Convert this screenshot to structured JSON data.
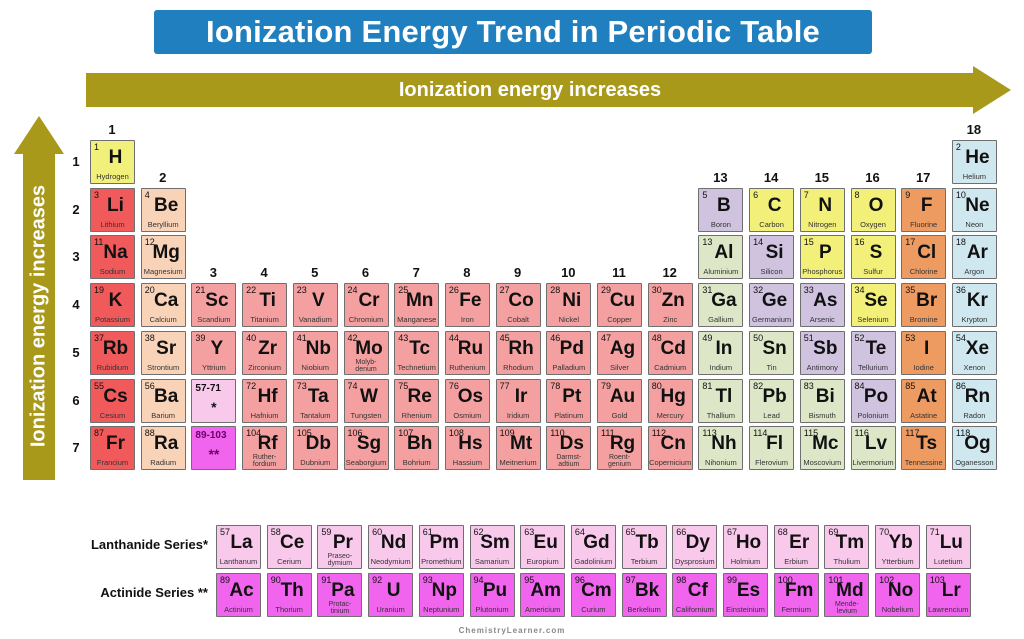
{
  "title": "Ionization Energy Trend in Periodic Table",
  "horizontal_arrow": {
    "label": "Ionization energy increases",
    "color": "#a9991a"
  },
  "vertical_arrow": {
    "label": "Ionization energy increases",
    "color": "#a9991a"
  },
  "colors": {
    "alkali": "#f05a5a",
    "alkaline": "#f9d3b8",
    "transition": "#f4a0a0",
    "hydrogen": "#f1f07a",
    "nonmetal": "#f3f07a",
    "metalloid": "#cfc3e0",
    "post_transition": "#dde7c8",
    "halogen": "#ee9b62",
    "noble": "#cfe7ee",
    "lanthanide": "#f9c9ec",
    "actinide": "#f064ee"
  },
  "periods": [
    "1",
    "2",
    "3",
    "4",
    "5",
    "6",
    "7"
  ],
  "groups": [
    "1",
    "2",
    "3",
    "4",
    "5",
    "6",
    "7",
    "8",
    "9",
    "10",
    "11",
    "12",
    "13",
    "14",
    "15",
    "16",
    "17",
    "18"
  ],
  "elements": [
    {
      "n": "1",
      "s": "H",
      "name": "Hydrogen",
      "p": 1,
      "g": 1,
      "c": "hydrogen"
    },
    {
      "n": "2",
      "s": "He",
      "name": "Helium",
      "p": 1,
      "g": 18,
      "c": "noble"
    },
    {
      "n": "3",
      "s": "Li",
      "name": "Lithium",
      "p": 2,
      "g": 1,
      "c": "alkali"
    },
    {
      "n": "4",
      "s": "Be",
      "name": "Beryllium",
      "p": 2,
      "g": 2,
      "c": "alkaline"
    },
    {
      "n": "5",
      "s": "B",
      "name": "Boron",
      "p": 2,
      "g": 13,
      "c": "metalloid"
    },
    {
      "n": "6",
      "s": "C",
      "name": "Carbon",
      "p": 2,
      "g": 14,
      "c": "nonmetal"
    },
    {
      "n": "7",
      "s": "N",
      "name": "Nitrogen",
      "p": 2,
      "g": 15,
      "c": "nonmetal"
    },
    {
      "n": "8",
      "s": "O",
      "name": "Oxygen",
      "p": 2,
      "g": 16,
      "c": "nonmetal"
    },
    {
      "n": "9",
      "s": "F",
      "name": "Fluorine",
      "p": 2,
      "g": 17,
      "c": "halogen"
    },
    {
      "n": "10",
      "s": "Ne",
      "name": "Neon",
      "p": 2,
      "g": 18,
      "c": "noble"
    },
    {
      "n": "11",
      "s": "Na",
      "name": "Sodium",
      "p": 3,
      "g": 1,
      "c": "alkali"
    },
    {
      "n": "12",
      "s": "Mg",
      "name": "Magnesium",
      "p": 3,
      "g": 2,
      "c": "alkaline"
    },
    {
      "n": "13",
      "s": "Al",
      "name": "Aluminium",
      "p": 3,
      "g": 13,
      "c": "post_transition"
    },
    {
      "n": "14",
      "s": "Si",
      "name": "Silicon",
      "p": 3,
      "g": 14,
      "c": "metalloid"
    },
    {
      "n": "15",
      "s": "P",
      "name": "Phosphorus",
      "p": 3,
      "g": 15,
      "c": "nonmetal"
    },
    {
      "n": "16",
      "s": "S",
      "name": "Sulfur",
      "p": 3,
      "g": 16,
      "c": "nonmetal"
    },
    {
      "n": "17",
      "s": "Cl",
      "name": "Chlorine",
      "p": 3,
      "g": 17,
      "c": "halogen"
    },
    {
      "n": "18",
      "s": "Ar",
      "name": "Argon",
      "p": 3,
      "g": 18,
      "c": "noble"
    },
    {
      "n": "19",
      "s": "K",
      "name": "Potassium",
      "p": 4,
      "g": 1,
      "c": "alkali"
    },
    {
      "n": "20",
      "s": "Ca",
      "name": "Calcium",
      "p": 4,
      "g": 2,
      "c": "alkaline"
    },
    {
      "n": "21",
      "s": "Sc",
      "name": "Scandium",
      "p": 4,
      "g": 3,
      "c": "transition"
    },
    {
      "n": "22",
      "s": "Ti",
      "name": "Titanium",
      "p": 4,
      "g": 4,
      "c": "transition"
    },
    {
      "n": "23",
      "s": "V",
      "name": "Vanadium",
      "p": 4,
      "g": 5,
      "c": "transition"
    },
    {
      "n": "24",
      "s": "Cr",
      "name": "Chromium",
      "p": 4,
      "g": 6,
      "c": "transition"
    },
    {
      "n": "25",
      "s": "Mn",
      "name": "Manganese",
      "p": 4,
      "g": 7,
      "c": "transition"
    },
    {
      "n": "26",
      "s": "Fe",
      "name": "Iron",
      "p": 4,
      "g": 8,
      "c": "transition"
    },
    {
      "n": "27",
      "s": "Co",
      "name": "Cobalt",
      "p": 4,
      "g": 9,
      "c": "transition"
    },
    {
      "n": "28",
      "s": "Ni",
      "name": "Nickel",
      "p": 4,
      "g": 10,
      "c": "transition"
    },
    {
      "n": "29",
      "s": "Cu",
      "name": "Copper",
      "p": 4,
      "g": 11,
      "c": "transition"
    },
    {
      "n": "30",
      "s": "Zn",
      "name": "Zinc",
      "p": 4,
      "g": 12,
      "c": "transition"
    },
    {
      "n": "31",
      "s": "Ga",
      "name": "Gallium",
      "p": 4,
      "g": 13,
      "c": "post_transition"
    },
    {
      "n": "32",
      "s": "Ge",
      "name": "Germanium",
      "p": 4,
      "g": 14,
      "c": "metalloid"
    },
    {
      "n": "33",
      "s": "As",
      "name": "Arsenic",
      "p": 4,
      "g": 15,
      "c": "metalloid"
    },
    {
      "n": "34",
      "s": "Se",
      "name": "Selenium",
      "p": 4,
      "g": 16,
      "c": "nonmetal"
    },
    {
      "n": "35",
      "s": "Br",
      "name": "Bromine",
      "p": 4,
      "g": 17,
      "c": "halogen"
    },
    {
      "n": "36",
      "s": "Kr",
      "name": "Krypton",
      "p": 4,
      "g": 18,
      "c": "noble"
    },
    {
      "n": "37",
      "s": "Rb",
      "name": "Rubidium",
      "p": 5,
      "g": 1,
      "c": "alkali"
    },
    {
      "n": "38",
      "s": "Sr",
      "name": "Strontium",
      "p": 5,
      "g": 2,
      "c": "alkaline"
    },
    {
      "n": "39",
      "s": "Y",
      "name": "Yttrium",
      "p": 5,
      "g": 3,
      "c": "transition"
    },
    {
      "n": "40",
      "s": "Zr",
      "name": "Zirconium",
      "p": 5,
      "g": 4,
      "c": "transition"
    },
    {
      "n": "41",
      "s": "Nb",
      "name": "Niobium",
      "p": 5,
      "g": 5,
      "c": "transition"
    },
    {
      "n": "42",
      "s": "Mo",
      "name": "Molyb-\ndenum",
      "p": 5,
      "g": 6,
      "c": "transition"
    },
    {
      "n": "43",
      "s": "Tc",
      "name": "Technetium",
      "p": 5,
      "g": 7,
      "c": "transition"
    },
    {
      "n": "44",
      "s": "Ru",
      "name": "Ruthenium",
      "p": 5,
      "g": 8,
      "c": "transition"
    },
    {
      "n": "45",
      "s": "Rh",
      "name": "Rhodium",
      "p": 5,
      "g": 9,
      "c": "transition"
    },
    {
      "n": "46",
      "s": "Pd",
      "name": "Palladium",
      "p": 5,
      "g": 10,
      "c": "transition"
    },
    {
      "n": "47",
      "s": "Ag",
      "name": "Silver",
      "p": 5,
      "g": 11,
      "c": "transition"
    },
    {
      "n": "48",
      "s": "Cd",
      "name": "Cadmium",
      "p": 5,
      "g": 12,
      "c": "transition"
    },
    {
      "n": "49",
      "s": "In",
      "name": "Indium",
      "p": 5,
      "g": 13,
      "c": "post_transition"
    },
    {
      "n": "50",
      "s": "Sn",
      "name": "Tin",
      "p": 5,
      "g": 14,
      "c": "post_transition"
    },
    {
      "n": "51",
      "s": "Sb",
      "name": "Antimony",
      "p": 5,
      "g": 15,
      "c": "metalloid"
    },
    {
      "n": "52",
      "s": "Te",
      "name": "Tellurium",
      "p": 5,
      "g": 16,
      "c": "metalloid"
    },
    {
      "n": "53",
      "s": "I",
      "name": "Iodine",
      "p": 5,
      "g": 17,
      "c": "halogen"
    },
    {
      "n": "54",
      "s": "Xe",
      "name": "Xenon",
      "p": 5,
      "g": 18,
      "c": "noble"
    },
    {
      "n": "55",
      "s": "Cs",
      "name": "Cesium",
      "p": 6,
      "g": 1,
      "c": "alkali"
    },
    {
      "n": "56",
      "s": "Ba",
      "name": "Barium",
      "p": 6,
      "g": 2,
      "c": "alkaline"
    },
    {
      "n": "72",
      "s": "Hf",
      "name": "Hafnium",
      "p": 6,
      "g": 4,
      "c": "transition"
    },
    {
      "n": "73",
      "s": "Ta",
      "name": "Tantalum",
      "p": 6,
      "g": 5,
      "c": "transition"
    },
    {
      "n": "74",
      "s": "W",
      "name": "Tungsten",
      "p": 6,
      "g": 6,
      "c": "transition"
    },
    {
      "n": "75",
      "s": "Re",
      "name": "Rhenium",
      "p": 6,
      "g": 7,
      "c": "transition"
    },
    {
      "n": "76",
      "s": "Os",
      "name": "Osmium",
      "p": 6,
      "g": 8,
      "c": "transition"
    },
    {
      "n": "77",
      "s": "Ir",
      "name": "Iridium",
      "p": 6,
      "g": 9,
      "c": "transition"
    },
    {
      "n": "78",
      "s": "Pt",
      "name": "Platinum",
      "p": 6,
      "g": 10,
      "c": "transition"
    },
    {
      "n": "79",
      "s": "Au",
      "name": "Gold",
      "p": 6,
      "g": 11,
      "c": "transition"
    },
    {
      "n": "80",
      "s": "Hg",
      "name": "Mercury",
      "p": 6,
      "g": 12,
      "c": "transition"
    },
    {
      "n": "81",
      "s": "Tl",
      "name": "Thallium",
      "p": 6,
      "g": 13,
      "c": "post_transition"
    },
    {
      "n": "82",
      "s": "Pb",
      "name": "Lead",
      "p": 6,
      "g": 14,
      "c": "post_transition"
    },
    {
      "n": "83",
      "s": "Bi",
      "name": "Bismuth",
      "p": 6,
      "g": 15,
      "c": "post_transition"
    },
    {
      "n": "84",
      "s": "Po",
      "name": "Polonium",
      "p": 6,
      "g": 16,
      "c": "metalloid"
    },
    {
      "n": "85",
      "s": "At",
      "name": "Astatine",
      "p": 6,
      "g": 17,
      "c": "halogen"
    },
    {
      "n": "86",
      "s": "Rn",
      "name": "Radon",
      "p": 6,
      "g": 18,
      "c": "noble"
    },
    {
      "n": "87",
      "s": "Fr",
      "name": "Francium",
      "p": 7,
      "g": 1,
      "c": "alkali"
    },
    {
      "n": "88",
      "s": "Ra",
      "name": "Radium",
      "p": 7,
      "g": 2,
      "c": "alkaline"
    },
    {
      "n": "104",
      "s": "Rf",
      "name": "Ruther-\nfordium",
      "p": 7,
      "g": 4,
      "c": "transition"
    },
    {
      "n": "105",
      "s": "Db",
      "name": "Dubnium",
      "p": 7,
      "g": 5,
      "c": "transition"
    },
    {
      "n": "106",
      "s": "Sg",
      "name": "Seaborgium",
      "p": 7,
      "g": 6,
      "c": "transition"
    },
    {
      "n": "107",
      "s": "Bh",
      "name": "Bohrium",
      "p": 7,
      "g": 7,
      "c": "transition"
    },
    {
      "n": "108",
      "s": "Hs",
      "name": "Hassium",
      "p": 7,
      "g": 8,
      "c": "transition"
    },
    {
      "n": "109",
      "s": "Mt",
      "name": "Meitnerium",
      "p": 7,
      "g": 9,
      "c": "transition"
    },
    {
      "n": "110",
      "s": "Ds",
      "name": "Darmst-\nadtium",
      "p": 7,
      "g": 10,
      "c": "transition"
    },
    {
      "n": "111",
      "s": "Rg",
      "name": "Roent-\ngenium",
      "p": 7,
      "g": 11,
      "c": "transition"
    },
    {
      "n": "112",
      "s": "Cn",
      "name": "Copernicium",
      "p": 7,
      "g": 12,
      "c": "transition"
    },
    {
      "n": "113",
      "s": "Nh",
      "name": "Nihonium",
      "p": 7,
      "g": 13,
      "c": "post_transition"
    },
    {
      "n": "114",
      "s": "Fl",
      "name": "Flerovium",
      "p": 7,
      "g": 14,
      "c": "post_transition"
    },
    {
      "n": "115",
      "s": "Mc",
      "name": "Moscovium",
      "p": 7,
      "g": 15,
      "c": "post_transition"
    },
    {
      "n": "116",
      "s": "Lv",
      "name": "Livermorium",
      "p": 7,
      "g": 16,
      "c": "post_transition"
    },
    {
      "n": "117",
      "s": "Ts",
      "name": "Tennessine",
      "p": 7,
      "g": 17,
      "c": "halogen"
    },
    {
      "n": "118",
      "s": "Og",
      "name": "Oganesson",
      "p": 7,
      "g": 18,
      "c": "noble"
    }
  ],
  "placeholders": [
    {
      "range": "57-71",
      "stars": "*",
      "p": 6,
      "g": 3,
      "c": "lanthanide"
    },
    {
      "range": "89-103",
      "stars": "**",
      "p": 7,
      "g": 3,
      "c": "actinide"
    }
  ],
  "lanthanide_series": {
    "label": "Lanthanide Series",
    "marker": "*",
    "elements": [
      {
        "n": "57",
        "s": "La",
        "name": "Lanthanum"
      },
      {
        "n": "58",
        "s": "Ce",
        "name": "Cerium"
      },
      {
        "n": "59",
        "s": "Pr",
        "name": "Praseo-\ndymium"
      },
      {
        "n": "60",
        "s": "Nd",
        "name": "Neodymium"
      },
      {
        "n": "61",
        "s": "Pm",
        "name": "Promethium"
      },
      {
        "n": "62",
        "s": "Sm",
        "name": "Samarium"
      },
      {
        "n": "63",
        "s": "Eu",
        "name": "Europium"
      },
      {
        "n": "64",
        "s": "Gd",
        "name": "Gadolinium"
      },
      {
        "n": "65",
        "s": "Tb",
        "name": "Terbium"
      },
      {
        "n": "66",
        "s": "Dy",
        "name": "Dysprosium"
      },
      {
        "n": "67",
        "s": "Ho",
        "name": "Holmium"
      },
      {
        "n": "68",
        "s": "Er",
        "name": "Erbium"
      },
      {
        "n": "69",
        "s": "Tm",
        "name": "Thulium"
      },
      {
        "n": "70",
        "s": "Yb",
        "name": "Ytterbium"
      },
      {
        "n": "71",
        "s": "Lu",
        "name": "Lutetium"
      }
    ]
  },
  "actinide_series": {
    "label": "Actinide Series",
    "marker": "**",
    "elements": [
      {
        "n": "89",
        "s": "Ac",
        "name": "Actinium"
      },
      {
        "n": "90",
        "s": "Th",
        "name": "Thorium"
      },
      {
        "n": "91",
        "s": "Pa",
        "name": "Protac-\ntinium"
      },
      {
        "n": "92",
        "s": "U",
        "name": "Uranium"
      },
      {
        "n": "93",
        "s": "Np",
        "name": "Neptunium"
      },
      {
        "n": "94",
        "s": "Pu",
        "name": "Plutonium"
      },
      {
        "n": "95",
        "s": "Am",
        "name": "Americium"
      },
      {
        "n": "96",
        "s": "Cm",
        "name": "Curium"
      },
      {
        "n": "97",
        "s": "Bk",
        "name": "Berkelium"
      },
      {
        "n": "98",
        "s": "Cf",
        "name": "Californium"
      },
      {
        "n": "99",
        "s": "Es",
        "name": "Einsteinium"
      },
      {
        "n": "100",
        "s": "Fm",
        "name": "Fermium"
      },
      {
        "n": "101",
        "s": "Md",
        "name": "Mende-\nlevium"
      },
      {
        "n": "102",
        "s": "No",
        "name": "Nobelium"
      },
      {
        "n": "103",
        "s": "Lr",
        "name": "Lawrencium"
      }
    ]
  },
  "footer": "ChemistryLearner.com"
}
